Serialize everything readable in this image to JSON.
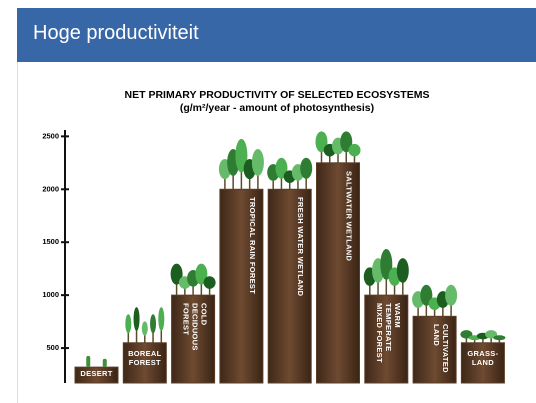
{
  "slide": {
    "title": "Hoge productiviteit"
  },
  "chart_data": {
    "type": "bar",
    "title": "NET PRIMARY PRODUCTIVITY OF SELECTED ECOSYSTEMS",
    "subtitle": "(g/m²/year - amount of photosynthesis)",
    "categories": [
      "DESERT",
      "BOREAL\nFOREST",
      "COLD\nDECIDUOUS\nFOREST",
      "TROPICAL RAIN FOREST",
      "FRESH WATER WETLAND",
      "SALTWATER WETLAND",
      "WARM\nTEMPERATE\nMIXED FOREST",
      "CULTIVATED\nLAND",
      "GRASS-\nLAND"
    ],
    "values": [
      320,
      550,
      1000,
      2000,
      2000,
      2250,
      1000,
      800,
      550
    ],
    "color": "#5b3c27",
    "ylim": [
      170,
      2560
    ],
    "yticks": [
      500,
      1000,
      1500,
      2000,
      2500
    ]
  }
}
